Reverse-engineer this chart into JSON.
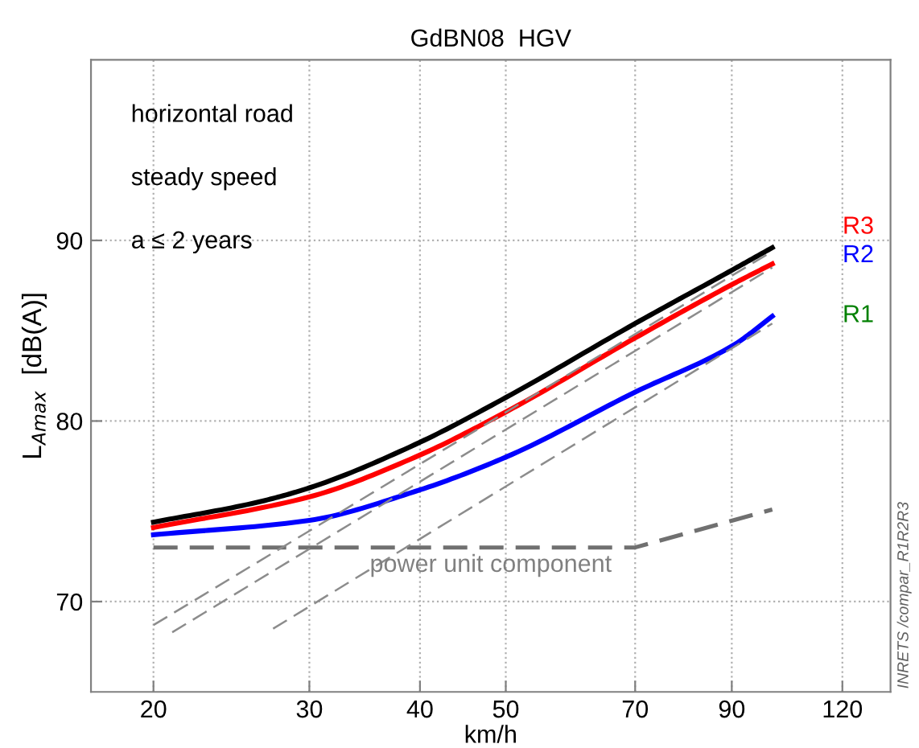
{
  "chart_data": {
    "type": "line",
    "title": "GdBN08  HGV",
    "xlabel": "km/h",
    "ylabel": "L$_{Amax}$  [dB(A)]",
    "log": "x",
    "xlim": [
      17,
      136
    ],
    "xticks": [
      20,
      30,
      40,
      50,
      70,
      90,
      120
    ],
    "ylim": [
      65,
      100
    ],
    "yticks": [
      70,
      80,
      90
    ],
    "grid": true,
    "legend": false,
    "marker": "none",
    "series": [
      {
        "color": "#000000",
        "line_style": "solid",
        "x": [
          20,
          26.2,
          30,
          39.5,
          50,
          70,
          90.4,
          100
        ],
        "values": [
          74.4,
          75.5,
          76.3,
          78.7,
          81.3,
          85.4,
          88.4,
          89.6
        ]
      },
      {
        "color": "#ff0000",
        "line_style": "solid",
        "x": [
          20,
          30,
          39.5,
          50,
          70,
          90.4,
          100
        ],
        "values": [
          74.1,
          75.8,
          78.0,
          80.5,
          84.6,
          87.6,
          88.7
        ]
      },
      {
        "color": "#0000ff",
        "line_style": "solid",
        "x": [
          20,
          30,
          39.5,
          50,
          70,
          90.4,
          100
        ],
        "values": [
          73.7,
          74.5,
          76.1,
          78.0,
          81.6,
          84.2,
          85.8
        ]
      },
      {
        "color": "#707070",
        "line_style": "dashed",
        "x": [
          20,
          70,
          100
        ],
        "values": [
          73.0,
          73.0,
          75.1
        ]
      },
      {
        "color": "#8c8c8c",
        "line_style": "dashed",
        "x": [
          20,
          100
        ],
        "values": [
          68.7,
          89.4
        ]
      },
      {
        "color": "#8c8c8c",
        "line_style": "dashed",
        "x": [
          21,
          100
        ],
        "values": [
          68.3,
          88.5
        ]
      },
      {
        "color": "#8c8c8c",
        "line_style": "dashed",
        "x": [
          27.3,
          100
        ],
        "values": [
          68.5,
          85.4
        ]
      }
    ],
    "annotations": [
      "horizontal road",
      "steady speed",
      "a ≤ 2 years",
      "power unit component",
      "R3",
      "R2",
      "R1",
      "INRETS /compar_R1R2R3"
    ]
  }
}
